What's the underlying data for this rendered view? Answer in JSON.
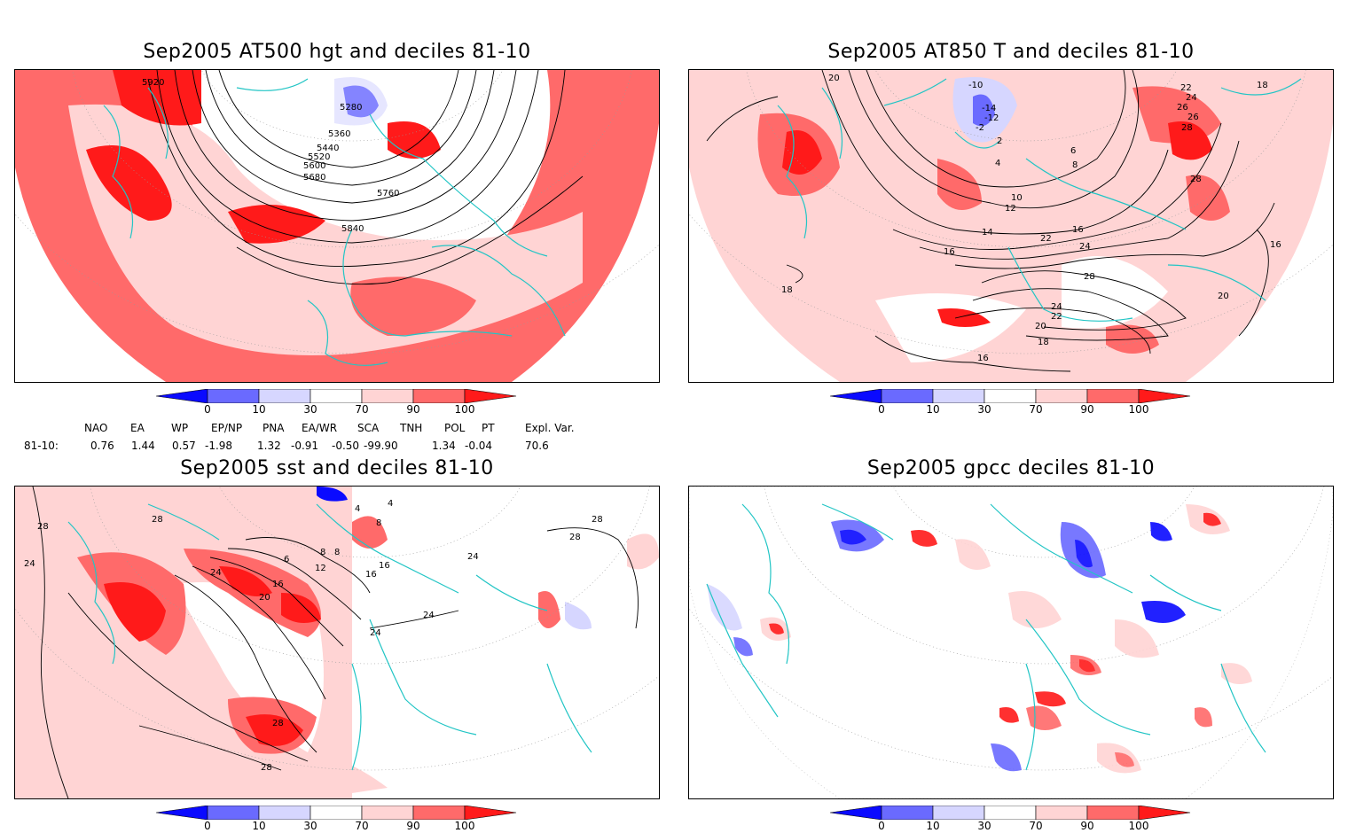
{
  "panels": [
    {
      "title": "Sep2005 AT500 hgt and deciles 81-10",
      "contour_labels": [
        "5920",
        "5280",
        "5360",
        "5440",
        "5520",
        "5600",
        "5680",
        "5760",
        "5840"
      ]
    },
    {
      "title": "Sep2005 AT850 T and deciles 81-10",
      "contour_labels": [
        "20",
        "-10",
        "-14",
        "-12",
        "-2",
        "2",
        "4",
        "6",
        "8",
        "10",
        "12",
        "14",
        "16",
        "16",
        "18",
        "22",
        "24",
        "26",
        "28",
        "28",
        "22",
        "24",
        "26",
        "28",
        "24",
        "22",
        "20",
        "18",
        "16",
        "16",
        "20",
        "18"
      ]
    },
    {
      "title": "Sep2005 sst and deciles 81-10",
      "contour_labels": [
        "28",
        "24",
        "28",
        "4",
        "4",
        "8",
        "6",
        "8",
        "8",
        "12",
        "16",
        "16",
        "16",
        "20",
        "24",
        "24",
        "24",
        "28",
        "28",
        "28",
        "24",
        "28"
      ]
    },
    {
      "title": "Sep2005 gpcc deciles 81-10",
      "contour_labels": []
    }
  ],
  "colorbar": {
    "labels": [
      "0",
      "10",
      "30",
      "70",
      "90",
      "100"
    ],
    "colors": [
      "#0a0aff",
      "#6a6aff",
      "#d6d6ff",
      "#ffffff",
      "#ffd4d4",
      "#ff6a6a",
      "#ff1a1a"
    ]
  },
  "indices": {
    "headers": [
      "NAO",
      "EA",
      "WP",
      "EP/NP",
      "PNA",
      "EA/WR",
      "SCA",
      "TNH",
      "POL",
      "PT",
      "Expl. Var."
    ],
    "row_label": "81-10:",
    "values": [
      "0.76",
      "1.44",
      "0.57",
      "-1.98",
      "1.32",
      "-0.91",
      "-0.50",
      "-99.90",
      "1.34",
      "-0.04",
      "70.6"
    ]
  }
}
